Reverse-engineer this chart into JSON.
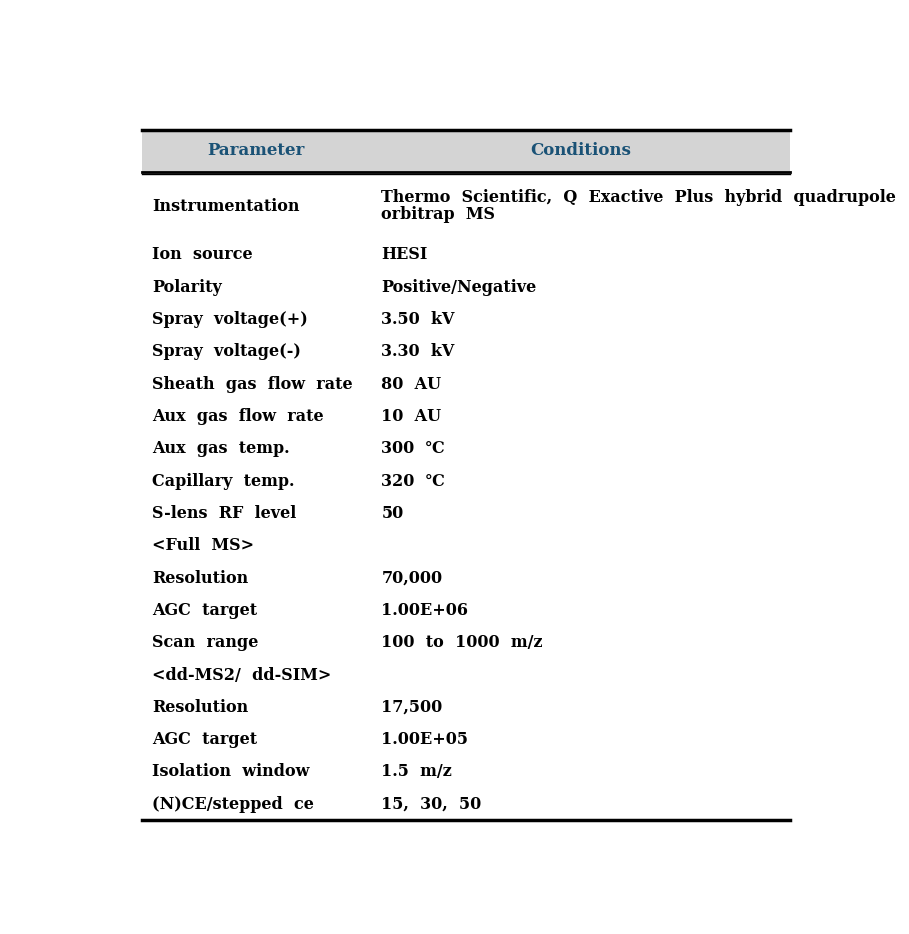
{
  "header_bg_color": "#d4d4d4",
  "header_text_color": "#1a5276",
  "header_param": "Parameter",
  "header_cond": "Conditions",
  "col_div": 0.365,
  "header_fontsize": 12,
  "row_fontsize": 11.5,
  "rows": [
    {
      "param": "Instrumentation",
      "cond_line1": "Thermo  Scientific,  Q  Exactive  Plus  hybrid  quadrupole",
      "cond_line2": "orbitrap  MS",
      "multiline": true
    },
    {
      "param": "Ion  source",
      "cond_line1": "HESI",
      "cond_line2": "",
      "multiline": false
    },
    {
      "param": "Polarity",
      "cond_line1": "Positive/Negative",
      "cond_line2": "",
      "multiline": false
    },
    {
      "param": "Spray  voltage(+)",
      "cond_line1": "3.50  kV",
      "cond_line2": "",
      "multiline": false
    },
    {
      "param": "Spray  voltage(-)",
      "cond_line1": "3.30  kV",
      "cond_line2": "",
      "multiline": false
    },
    {
      "param": "Sheath  gas  flow  rate",
      "cond_line1": "80  AU",
      "cond_line2": "",
      "multiline": false
    },
    {
      "param": "Aux  gas  flow  rate",
      "cond_line1": "10  AU",
      "cond_line2": "",
      "multiline": false
    },
    {
      "param": "Aux  gas  temp.",
      "cond_line1": "300  ℃",
      "cond_line2": "",
      "multiline": false
    },
    {
      "param": "Capillary  temp.",
      "cond_line1": "320  ℃",
      "cond_line2": "",
      "multiline": false
    },
    {
      "param": "S-lens  RF  level",
      "cond_line1": "50",
      "cond_line2": "",
      "multiline": false
    },
    {
      "param": "<Full  MS>",
      "cond_line1": "",
      "cond_line2": "",
      "multiline": false
    },
    {
      "param": "Resolution",
      "cond_line1": "70,000",
      "cond_line2": "",
      "multiline": false
    },
    {
      "param": "AGC  target",
      "cond_line1": "1.00E+06",
      "cond_line2": "",
      "multiline": false
    },
    {
      "param": "Scan  range",
      "cond_line1": "100  to  1000  m/z",
      "cond_line2": "",
      "multiline": false
    },
    {
      "param": "<dd-MS2/  dd-SIM>",
      "cond_line1": "",
      "cond_line2": "",
      "multiline": false
    },
    {
      "param": "Resolution",
      "cond_line1": "17,500",
      "cond_line2": "",
      "multiline": false
    },
    {
      "param": "AGC  target",
      "cond_line1": "1.00E+05",
      "cond_line2": "",
      "multiline": false
    },
    {
      "param": "Isolation  window",
      "cond_line1": "1.5  m/z",
      "cond_line2": "",
      "multiline": false
    },
    {
      "param": "(N)CE/stepped  ce",
      "cond_line1": "15,  30,  50",
      "cond_line2": "",
      "multiline": false
    }
  ]
}
